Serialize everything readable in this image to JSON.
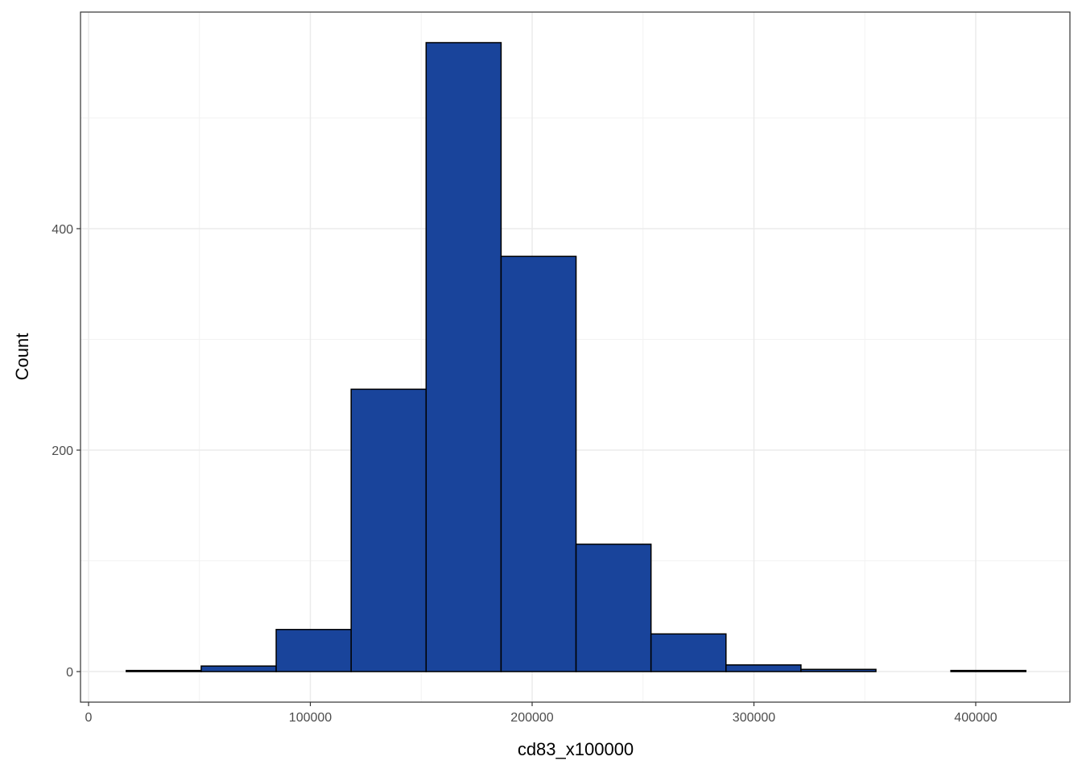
{
  "chart_data": {
    "type": "histogram",
    "x_label": "cd83_x100000",
    "y_label": "Count",
    "bins": [
      17000,
      50800,
      84600,
      118400,
      152200,
      186000,
      219800,
      253600,
      287400,
      321200,
      355000,
      388800,
      422600
    ],
    "values": [
      1,
      5,
      38,
      255,
      568,
      375,
      115,
      34,
      6,
      2,
      0,
      1
    ],
    "color": "#19449b",
    "edge_color": "#000000",
    "xlim": [
      -3630,
      442470
    ],
    "ylim": [
      -27.6,
      595.6
    ],
    "xticks": [
      0,
      100000,
      200000,
      300000,
      400000
    ],
    "yticks": [
      0,
      200,
      400
    ],
    "x_minor_ticks": [
      50000,
      150000,
      250000,
      350000
    ],
    "y_minor_ticks": [
      100,
      300,
      500
    ],
    "grid": true
  }
}
